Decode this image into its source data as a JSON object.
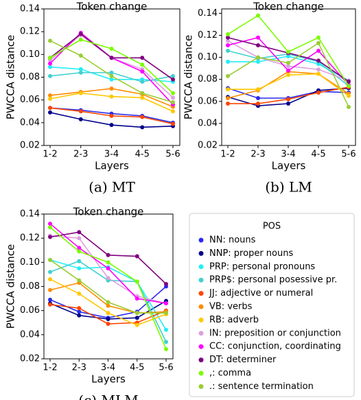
{
  "chart_data": [
    {
      "type": "line",
      "title": "Token change",
      "caption": "(a) MT",
      "xlabel": "Layers",
      "ylabel": "PWCCA distance",
      "categories": [
        "1-2",
        "2-3",
        "3-4",
        "4-5",
        "5-6"
      ],
      "ylim": [
        0.02,
        0.14
      ],
      "yticks": [
        0.02,
        0.04,
        0.06,
        0.08,
        {
          "value": 0.1,
          "label": "0.10"
        },
        0.12,
        0.14
      ],
      "series": [
        {
          "name": "NN: nouns",
          "color": "#2a2af0",
          "values": [
            0.053,
            0.051,
            0.048,
            0.046,
            0.04
          ]
        },
        {
          "name": "NNP: proper nouns",
          "color": "#00008b",
          "values": [
            0.049,
            0.043,
            0.038,
            0.036,
            0.037
          ]
        },
        {
          "name": "PRP: personal pronouns",
          "color": "#22eef8",
          "values": [
            0.089,
            0.087,
            0.078,
            0.078,
            0.076
          ]
        },
        {
          "name": "PRP$: personal posessive pr.",
          "color": "#40d0d0",
          "values": [
            0.081,
            0.084,
            0.084,
            0.076,
            0.081
          ]
        },
        {
          "name": "JJ: adjective or numeral",
          "color": "#ff4500",
          "values": [
            0.053,
            0.05,
            0.046,
            0.045,
            0.039
          ]
        },
        {
          "name": "VB: verbs",
          "color": "#ff8c00",
          "values": [
            0.064,
            0.067,
            0.07,
            0.065,
            0.054
          ]
        },
        {
          "name": "RB: adverb",
          "color": "#ffc800",
          "values": [
            0.061,
            0.066,
            0.063,
            0.062,
            0.05
          ]
        },
        {
          "name": "IN: preposition or conjunction",
          "color": "#dda0dd",
          "values": [
            0.095,
            0.117,
            0.097,
            0.087,
            0.062
          ]
        },
        {
          "name": "CC: conjunction, coordinating",
          "color": "#ff00ff",
          "values": [
            0.092,
            0.119,
            0.097,
            0.085,
            0.056
          ]
        },
        {
          "name": "DT: determiner",
          "color": "#800080",
          "values": [
            0.097,
            0.118,
            0.097,
            0.097,
            0.078
          ]
        },
        {
          "name": ",: comma",
          "color": "#7cfc00",
          "values": [
            0.097,
            0.113,
            0.105,
            0.091,
            0.066
          ]
        },
        {
          "name": ".: sentence termination",
          "color": "#9acd32",
          "values": [
            0.112,
            0.099,
            0.081,
            0.066,
            0.058
          ]
        }
      ]
    },
    {
      "type": "line",
      "title": "Token change",
      "caption": "(b) LM",
      "xlabel": "Layers",
      "ylabel": "PWCCA distance",
      "categories": [
        "1-2",
        "2-3",
        "3-4",
        "4-5",
        "5-6"
      ],
      "ylim": [
        0.02,
        0.144
      ],
      "yticks": [
        0.02,
        0.04,
        0.06,
        0.08,
        {
          "value": 0.1,
          "label": "0.10"
        },
        0.12,
        0.14
      ],
      "series": [
        {
          "values": [
            0.072,
            0.063,
            0.063,
            0.069,
            0.068
          ]
        },
        {
          "values": [
            0.064,
            0.056,
            0.058,
            0.07,
            0.072
          ]
        },
        {
          "values": [
            0.096,
            0.096,
            0.101,
            0.094,
            0.079
          ]
        },
        {
          "values": [
            0.106,
            0.099,
            0.103,
            0.096,
            0.074
          ]
        },
        {
          "values": [
            0.058,
            0.058,
            0.062,
            0.068,
            0.073
          ]
        },
        {
          "values": [
            0.063,
            0.07,
            0.087,
            0.085,
            0.067
          ]
        },
        {
          "values": [
            0.071,
            0.071,
            0.084,
            0.085,
            0.065
          ]
        },
        {
          "values": [
            0.115,
            0.1,
            0.092,
            0.089,
            0.079
          ]
        },
        {
          "values": [
            0.111,
            0.118,
            0.088,
            0.106,
            0.075
          ]
        },
        {
          "values": [
            0.118,
            0.111,
            0.104,
            0.097,
            0.078
          ]
        },
        {
          "values": [
            0.121,
            0.138,
            0.105,
            0.118,
            0.074
          ]
        },
        {
          "values": [
            0.083,
            0.1,
            0.095,
            0.113,
            0.055
          ]
        }
      ]
    },
    {
      "type": "line",
      "title": "Token change",
      "caption": "(c) MLM",
      "xlabel": "Layers",
      "ylabel": "PWCCA distance",
      "categories": [
        "1-2",
        "2-3",
        "3-4",
        "4-5",
        "5-6"
      ],
      "ylim": [
        0.02,
        0.14
      ],
      "yticks": [
        0.02,
        0.04,
        0.06,
        0.08,
        {
          "value": 0.1,
          "label": "0.10"
        },
        0.12,
        0.14
      ],
      "series": [
        {
          "values": [
            0.069,
            0.059,
            0.054,
            0.059,
            0.08
          ]
        },
        {
          "values": [
            0.066,
            0.056,
            0.053,
            0.054,
            0.068
          ]
        },
        {
          "values": [
            0.102,
            0.095,
            0.096,
            0.084,
            0.044
          ]
        },
        {
          "values": [
            0.092,
            0.101,
            0.085,
            0.084,
            0.034
          ]
        },
        {
          "values": [
            0.065,
            0.062,
            0.049,
            0.05,
            0.06
          ]
        },
        {
          "values": [
            0.077,
            0.083,
            0.064,
            0.058,
            0.059
          ]
        },
        {
          "values": [
            0.086,
            0.074,
            0.058,
            0.048,
            0.057
          ]
        },
        {
          "values": [
            0.122,
            0.12,
            0.087,
            0.072,
            0.066
          ]
        },
        {
          "values": [
            0.132,
            0.112,
            0.095,
            0.07,
            0.066
          ]
        },
        {
          "values": [
            0.121,
            0.125,
            0.106,
            0.105,
            0.082
          ]
        },
        {
          "values": [
            0.129,
            0.109,
            0.1,
            0.084,
            0.028
          ]
        },
        {
          "values": [
            0.102,
            0.085,
            0.067,
            0.058,
            0.058
          ]
        }
      ]
    }
  ],
  "legend": {
    "title": "POS"
  }
}
